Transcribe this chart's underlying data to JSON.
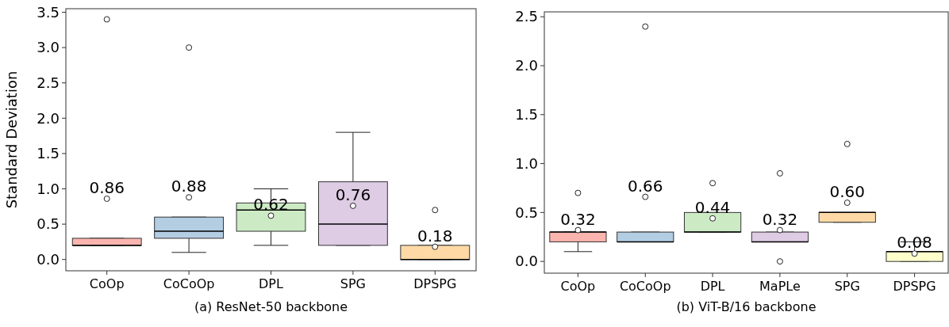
{
  "chart_data": [
    {
      "type": "box",
      "xlabel": "(a) ResNet-50 backbone",
      "ylabel": "Standard Deviation",
      "categories": [
        "CoOp",
        "CoCoOp",
        "DPL",
        "SPG",
        "DPSPG"
      ],
      "colors": [
        "#fbb4ae",
        "#b3cde3",
        "#ccebc5",
        "#decbe4",
        "#fed9a6"
      ],
      "ylim": [
        -0.16,
        3.55
      ],
      "yticks": [
        {
          "value": 0,
          "label": "0.0"
        },
        {
          "value": 0.5,
          "label": "0.5"
        },
        {
          "value": 1,
          "label": "1.0"
        },
        {
          "value": 1.5,
          "label": "1.5"
        },
        {
          "value": 2,
          "label": "2.0"
        },
        {
          "value": 2.5,
          "label": "2.5"
        },
        {
          "value": 3,
          "label": "3.0"
        },
        {
          "value": 3.5,
          "label": "3.5"
        }
      ],
      "grid": false,
      "boxes": [
        {
          "low": 0.2,
          "q1": 0.2,
          "median": 0.2,
          "q3": 0.3,
          "high": 0.3,
          "mean": 0.86,
          "outliers": [
            3.4
          ]
        },
        {
          "low": 0.1,
          "q1": 0.3,
          "median": 0.4,
          "q3": 0.6,
          "high": 0.6,
          "mean": 0.88,
          "outliers": [
            3.0
          ]
        },
        {
          "low": 0.2,
          "q1": 0.4,
          "median": 0.7,
          "q3": 0.8,
          "high": 1.0,
          "mean": 0.62
        },
        {
          "low": 0.2,
          "q1": 0.2,
          "median": 0.5,
          "q3": 1.1,
          "high": 1.8,
          "mean": 0.76
        },
        {
          "low": 0,
          "q1": 0,
          "median": 0,
          "q3": 0.2,
          "high": 0.2,
          "mean": 0.18,
          "outliers": [
            0.7
          ]
        }
      ],
      "annotations": [
        "0.86",
        "0.88",
        "0.62",
        "0.76",
        "0.18"
      ]
    },
    {
      "type": "box",
      "xlabel": "(b) ViT-B/16 backbone",
      "categories": [
        "CoOp",
        "CoCoOp",
        "DPL",
        "MaPLe",
        "SPG",
        "DPSPG"
      ],
      "colors": [
        "#fbb4ae",
        "#b3cde3",
        "#ccebc5",
        "#decbe4",
        "#fed9a6",
        "#ffffcc"
      ],
      "ylim": [
        -0.12,
        2.55
      ],
      "yticks": [
        {
          "value": 0,
          "label": "0.0"
        },
        {
          "value": 0.5,
          "label": "0.5"
        },
        {
          "value": 1,
          "label": "1.0"
        },
        {
          "value": 1.5,
          "label": "1.5"
        },
        {
          "value": 2,
          "label": "2.0"
        },
        {
          "value": 2.5,
          "label": "2.5"
        }
      ],
      "grid": false,
      "boxes": [
        {
          "low": 0.1,
          "q1": 0.2,
          "median": 0.3,
          "q3": 0.3,
          "high": 0.3,
          "mean": 0.32,
          "outliers": [
            0.7
          ]
        },
        {
          "low": 0.2,
          "q1": 0.2,
          "median": 0.2,
          "q3": 0.3,
          "high": 0.3,
          "mean": 0.66,
          "outliers": [
            2.4
          ]
        },
        {
          "low": 0.3,
          "q1": 0.3,
          "median": 0.3,
          "q3": 0.5,
          "high": 0.5,
          "mean": 0.44,
          "outliers": [
            0.8
          ]
        },
        {
          "low": 0.2,
          "q1": 0.2,
          "median": 0.2,
          "q3": 0.3,
          "high": 0.3,
          "mean": 0.32,
          "outliers": [
            0.9,
            0.0
          ]
        },
        {
          "low": 0.4,
          "q1": 0.4,
          "median": 0.5,
          "q3": 0.5,
          "high": 0.5,
          "mean": 0.6,
          "outliers": [
            1.2
          ]
        },
        {
          "low": 0,
          "q1": 0,
          "median": 0.1,
          "q3": 0.1,
          "high": 0.2,
          "mean": 0.08
        }
      ],
      "annotations": [
        "0.32",
        "0.66",
        "0.44",
        "0.32",
        "0.60",
        "0.08"
      ]
    }
  ]
}
